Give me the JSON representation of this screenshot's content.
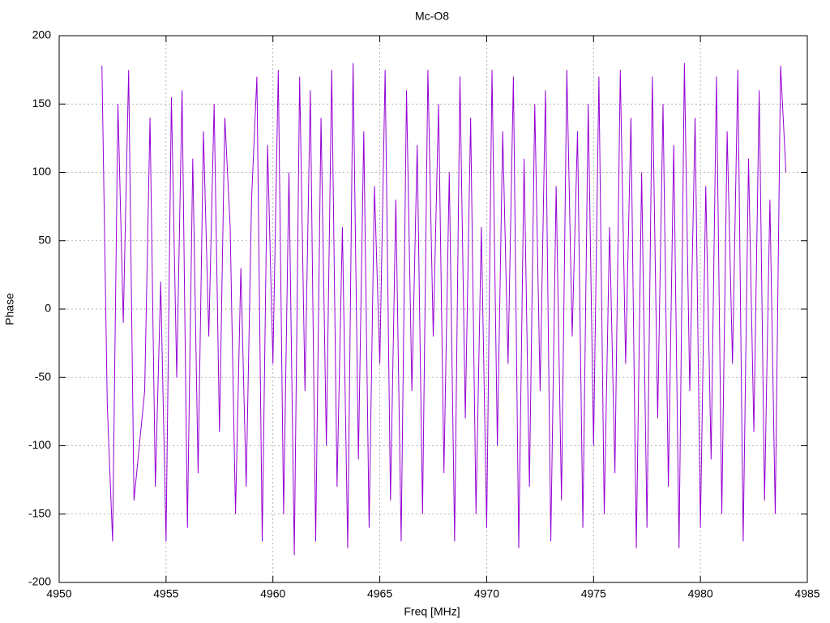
{
  "chart_data": {
    "type": "line",
    "title": "Mc-O8",
    "x_label": "Freq [MHz]",
    "y_label": "Phase",
    "xlim": [
      4950,
      4985
    ],
    "xticks": [
      4950,
      4955,
      4960,
      4965,
      4970,
      4975,
      4980,
      4985
    ],
    "ylim": [
      -200,
      200
    ],
    "yticks": [
      -200,
      -150,
      -100,
      -50,
      0,
      50,
      100,
      150,
      200
    ],
    "grid": true,
    "color": "#9400d3",
    "x": [
      4952,
      4952.25,
      4952.5,
      4952.75,
      4953,
      4953.25,
      4953.5,
      4953.75,
      4954,
      4954.25,
      4954.5,
      4954.75,
      4955,
      4955.25,
      4955.5,
      4955.75,
      4956,
      4956.25,
      4956.5,
      4956.75,
      4957,
      4957.25,
      4957.5,
      4957.75,
      4958,
      4958.25,
      4958.5,
      4958.75,
      4959,
      4959.25,
      4959.5,
      4959.75,
      4960,
      4960.25,
      4960.5,
      4960.75,
      4961,
      4961.25,
      4961.5,
      4961.75,
      4962,
      4962.25,
      4962.5,
      4962.75,
      4963,
      4963.25,
      4963.5,
      4963.75,
      4964,
      4964.25,
      4964.5,
      4964.75,
      4965,
      4965.25,
      4965.5,
      4965.75,
      4966,
      4966.25,
      4966.5,
      4966.75,
      4967,
      4967.25,
      4967.5,
      4967.75,
      4968,
      4968.25,
      4968.5,
      4968.75,
      4969,
      4969.25,
      4969.5,
      4969.75,
      4970,
      4970.25,
      4970.5,
      4970.75,
      4971,
      4971.25,
      4971.5,
      4971.75,
      4972,
      4972.25,
      4972.5,
      4972.75,
      4973,
      4973.25,
      4973.5,
      4973.75,
      4974,
      4974.25,
      4974.5,
      4974.75,
      4975,
      4975.25,
      4975.5,
      4975.75,
      4976,
      4976.25,
      4976.5,
      4976.75,
      4977,
      4977.25,
      4977.5,
      4977.75,
      4978,
      4978.25,
      4978.5,
      4978.75,
      4979,
      4979.25,
      4979.5,
      4979.75,
      4980,
      4980.25,
      4980.5,
      4980.75,
      4981,
      4981.25,
      4981.5,
      4981.75,
      4982,
      4982.25,
      4982.5,
      4982.75,
      4983,
      4983.25,
      4983.5,
      4983.75,
      4984
    ],
    "values": [
      178,
      -70,
      -170,
      150,
      -10,
      175,
      -140,
      -100,
      -60,
      140,
      -130,
      20,
      -170,
      155,
      -50,
      160,
      -160,
      110,
      -120,
      130,
      -20,
      150,
      -90,
      140,
      60,
      -150,
      30,
      -130,
      80,
      170,
      -170,
      120,
      -40,
      175,
      -150,
      100,
      -180,
      170,
      -60,
      160,
      -170,
      140,
      -100,
      175,
      -130,
      60,
      -175,
      180,
      -110,
      130,
      -160,
      90,
      -40,
      175,
      -140,
      80,
      -170,
      160,
      -60,
      120,
      -150,
      175,
      -20,
      150,
      -120,
      100,
      -170,
      170,
      -80,
      140,
      -150,
      60,
      -160,
      175,
      -100,
      130,
      -40,
      170,
      -175,
      110,
      -130,
      150,
      -60,
      160,
      -170,
      90,
      -140,
      175,
      -20,
      130,
      -160,
      150,
      -100,
      170,
      -150,
      60,
      -120,
      175,
      -40,
      140,
      -175,
      100,
      -160,
      170,
      -80,
      150,
      -130,
      120,
      -175,
      180,
      -60,
      140,
      -160,
      90,
      -110,
      170,
      -150,
      130,
      -40,
      175,
      -170,
      110,
      -90,
      160,
      -140,
      80,
      -150,
      178,
      100
    ]
  }
}
